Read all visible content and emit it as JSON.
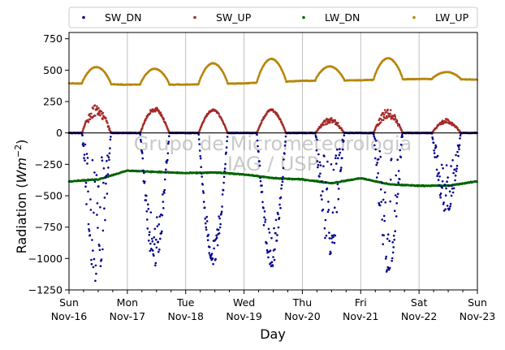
{
  "chart_data": {
    "type": "scatter",
    "xlabel": "Day",
    "ylabel_text": "Radiation (",
    "ylabel_unit": "Wm",
    "ylabel_exp": "−2",
    "ylabel_close": ")",
    "watermark": [
      "Grupo de Micrometeorologia",
      "IAG / USP"
    ],
    "xlim": [
      0,
      7
    ],
    "ylim": [
      -1250,
      800
    ],
    "yticks": [
      -1250,
      -1000,
      -750,
      -500,
      -250,
      0,
      250,
      500,
      750
    ],
    "ytick_labels": [
      "−1250",
      "−1000",
      "−750",
      "−500",
      "−250",
      "0",
      "250",
      "500",
      "750"
    ],
    "xticks": [
      {
        "x": 0,
        "day": "Sun",
        "date": "Nov-16"
      },
      {
        "x": 1,
        "day": "Mon",
        "date": "Nov-17"
      },
      {
        "x": 2,
        "day": "Tue",
        "date": "Nov-18"
      },
      {
        "x": 3,
        "day": "Wed",
        "date": "Nov-19"
      },
      {
        "x": 4,
        "day": "Thu",
        "date": "Nov-20"
      },
      {
        "x": 5,
        "day": "Fri",
        "date": "Nov-21"
      },
      {
        "x": 6,
        "day": "Sat",
        "date": "Nov-22"
      },
      {
        "x": 7,
        "day": "Sun",
        "date": "Nov-23"
      }
    ],
    "grid": "vertical",
    "zero_line": true,
    "legend_position": "top, above plot",
    "series": [
      {
        "name": "SW_DN",
        "color": "#00008b",
        "day_peaks": [
          -1200,
          -1080,
          -1050,
          -1070,
          -1000,
          -1120,
          -640
        ],
        "day_noise": [
          0.9,
          0.4,
          0.25,
          0.3,
          0.9,
          0.9,
          0.7
        ]
      },
      {
        "name": "SW_UP",
        "color": "#a52a2a",
        "day_peaks": [
          225,
          205,
          190,
          190,
          125,
          195,
          110
        ],
        "day_noise": [
          0.5,
          0.2,
          0.1,
          0.15,
          0.5,
          0.5,
          0.4
        ]
      },
      {
        "name": "LW_DN",
        "color": "#006400",
        "daily_mean": [
          -385,
          -330,
          -310,
          -340,
          -400,
          -400,
          -425,
          -385
        ],
        "points": [
          [
            0,
            -385
          ],
          [
            0.5,
            -370
          ],
          [
            1,
            -300
          ],
          [
            1.5,
            -310
          ],
          [
            2,
            -320
          ],
          [
            2.5,
            -315
          ],
          [
            3,
            -330
          ],
          [
            3.5,
            -360
          ],
          [
            4,
            -370
          ],
          [
            4.5,
            -400
          ],
          [
            5,
            -360
          ],
          [
            5.5,
            -410
          ],
          [
            6,
            -420
          ],
          [
            6.5,
            -420
          ],
          [
            7,
            -385
          ]
        ]
      },
      {
        "name": "LW_UP",
        "color": "#b8860b",
        "night_base": [
          395,
          385,
          385,
          395,
          415,
          420,
          430,
          425
        ],
        "day_peaks": [
          525,
          510,
          555,
          590,
          530,
          595,
          485
        ]
      }
    ]
  }
}
